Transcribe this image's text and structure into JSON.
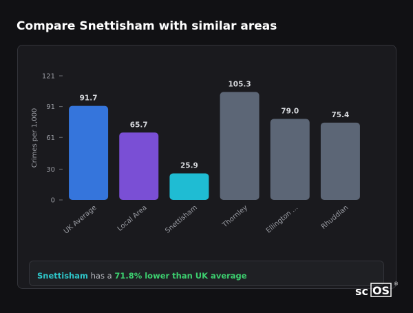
{
  "header": {
    "title": "Compare Snettisham with similar areas"
  },
  "chart_data": {
    "type": "bar",
    "y_label": "Crimes per 1,000",
    "categories": [
      "UK Average",
      "Local Area",
      "Snettisham",
      "Thornley",
      "Ellington ...",
      "Rhuddlan"
    ],
    "values": [
      91.7,
      65.7,
      25.9,
      105.3,
      79.0,
      75.4
    ],
    "value_labels": [
      "91.7",
      "65.7",
      "25.9",
      "105.3",
      "79.0",
      "75.4"
    ],
    "colors": [
      "#3575dc",
      "#7a4fd5",
      "#1fbcd3",
      "#5c6676",
      "#5c6676",
      "#5c6676"
    ],
    "ylim": [
      0,
      121
    ],
    "yticks": [
      0,
      30,
      61,
      91,
      121
    ],
    "grid": false
  },
  "summary": {
    "place": "Snettisham",
    "text": "has a",
    "highlight": "71.8% lower than UK average"
  },
  "logo": {
    "left": "sc",
    "boxed": "OS",
    "mark": "®"
  }
}
